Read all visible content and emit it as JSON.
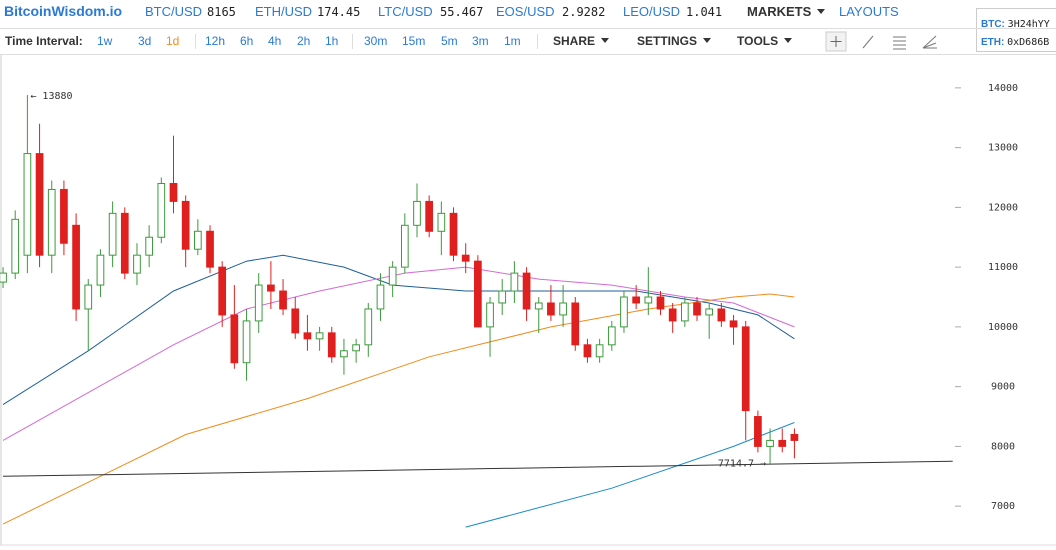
{
  "header": {
    "logo": "BitcoinWisdom.io",
    "tickers": [
      {
        "symbol": "BTC/USD",
        "price": "8165"
      },
      {
        "symbol": "ETH/USD",
        "price": "174.45"
      },
      {
        "symbol": "LTC/USD",
        "price": "55.467"
      },
      {
        "symbol": "EOS/USD",
        "price": "2.9282"
      },
      {
        "symbol": "LEO/USD",
        "price": "1.041"
      }
    ],
    "menu": [
      "MARKETS",
      "LAYOUTS"
    ],
    "wallet": [
      {
        "label": "BTC:",
        "address": "3H24hYY"
      },
      {
        "label": "ETH:",
        "address": "0xD686B"
      }
    ]
  },
  "toolbar": {
    "label": "Time Interval:",
    "intervals": [
      "1w",
      "3d",
      "1d",
      "12h",
      "6h",
      "4h",
      "2h",
      "1h",
      "30m",
      "15m",
      "5m",
      "3m",
      "1m"
    ],
    "active": "1d",
    "menus": [
      "SHARE",
      "SETTINGS",
      "TOOLS"
    ]
  },
  "chart_data": {
    "type": "candlestick",
    "up_color": "#3c9a3c",
    "down_color": "#e01f1f",
    "open": [
      10750,
      10900,
      11200,
      12900,
      11200,
      12300,
      11700,
      10300,
      10700,
      11200,
      11900,
      10900,
      11200,
      11500,
      12400,
      12100,
      11300,
      11600,
      11000,
      10200,
      9400,
      10100,
      10700,
      10600,
      10300,
      9900,
      9800,
      9900,
      9500,
      9600,
      9700,
      10300,
      10700,
      11000,
      11700,
      12100,
      11600,
      11900,
      11200,
      11100,
      10000,
      10400,
      10600,
      10900,
      10300,
      10400,
      10200,
      10400,
      9700,
      9500,
      9700,
      10000,
      10500,
      10400,
      10500,
      10300,
      10100,
      10400,
      10200,
      10300,
      10100,
      10000,
      8500,
      8000,
      8100,
      8200
    ],
    "high": [
      11000,
      11950,
      13880,
      13400,
      12450,
      12450,
      11900,
      10800,
      11300,
      12100,
      12000,
      11400,
      11700,
      12500,
      13200,
      12200,
      11800,
      11700,
      11100,
      10700,
      10300,
      10900,
      11100,
      10800,
      10500,
      10200,
      10000,
      10000,
      9800,
      9800,
      10400,
      10900,
      11100,
      11900,
      12400,
      12200,
      12100,
      12000,
      11400,
      11200,
      10500,
      10800,
      11100,
      11000,
      10500,
      10700,
      10700,
      10500,
      9800,
      9800,
      10100,
      10600,
      10700,
      11000,
      10600,
      10400,
      10500,
      10500,
      10400,
      10400,
      10200,
      10100,
      8600,
      8300,
      8300,
      8300
    ],
    "low": [
      10650,
      10800,
      10900,
      11000,
      10900,
      11200,
      10100,
      9600,
      10500,
      11000,
      10800,
      10700,
      11000,
      11400,
      11900,
      11000,
      11200,
      10900,
      10000,
      9300,
      9100,
      9900,
      10300,
      10200,
      9800,
      9600,
      9600,
      9400,
      9200,
      9400,
      9500,
      10100,
      10500,
      10900,
      11500,
      11500,
      11200,
      11100,
      10900,
      10000,
      9500,
      10200,
      10400,
      10100,
      9900,
      10100,
      10000,
      9600,
      9400,
      9400,
      9600,
      9900,
      10300,
      10200,
      10200,
      9900,
      10000,
      10100,
      9800,
      10000,
      9700,
      8100,
      7900,
      7714.7,
      7900,
      7800
    ],
    "close": [
      10900,
      11800,
      12900,
      11200,
      12300,
      11400,
      10300,
      10700,
      11200,
      11900,
      10900,
      11200,
      11500,
      12400,
      12100,
      11300,
      11600,
      11000,
      10200,
      9400,
      10100,
      10700,
      10600,
      10300,
      9900,
      9800,
      9900,
      9500,
      9600,
      9700,
      10300,
      10700,
      11000,
      11700,
      12100,
      11600,
      11900,
      11200,
      11100,
      10000,
      10400,
      10600,
      10900,
      10300,
      10400,
      10200,
      10400,
      9700,
      9500,
      9700,
      10000,
      10500,
      10400,
      10500,
      10300,
      10100,
      10400,
      10200,
      10300,
      10100,
      10000,
      8600,
      8000,
      8100,
      8000,
      8100
    ],
    "lines": [
      {
        "color": "#1f5f99",
        "x": [
          0,
          7,
          14,
          20,
          23,
          28,
          32,
          38,
          45,
          52,
          58,
          62,
          65
        ],
        "values": [
          8700,
          9600,
          10600,
          11100,
          11200,
          11000,
          10700,
          10600,
          10600,
          10600,
          10400,
          10200,
          9800
        ]
      },
      {
        "color": "#d36ad3",
        "x": [
          0,
          7,
          14,
          20,
          26,
          33,
          38,
          44,
          50,
          56,
          60,
          65
        ],
        "values": [
          8100,
          8900,
          9700,
          10300,
          10600,
          10900,
          11000,
          10800,
          10700,
          10500,
          10400,
          10000
        ]
      },
      {
        "color": "#f08c1a",
        "x": [
          0,
          8,
          15,
          25,
          35,
          45,
          53,
          60,
          63,
          65
        ],
        "values": [
          6700,
          7500,
          8200,
          8800,
          9500,
          10000,
          10300,
          10500,
          10550,
          10500
        ]
      },
      {
        "color": "#1a8bc8",
        "x": [
          38,
          50,
          60,
          65
        ],
        "values": [
          6650,
          7300,
          8000,
          8400
        ]
      },
      {
        "color": "#333333",
        "x": [
          0,
          78
        ],
        "values": [
          7500,
          7750
        ]
      }
    ],
    "annotations": [
      {
        "text": "← 13880",
        "value": 13880
      },
      {
        "text": "7714.7 →",
        "value": 7714.7
      }
    ],
    "xlim": [
      -0.25,
      78.6
    ],
    "ylim": [
      6350,
      14550
    ],
    "yticks": [
      7000,
      8000,
      9000,
      10000,
      11000,
      12000,
      13000,
      14000
    ],
    "grid": false
  }
}
